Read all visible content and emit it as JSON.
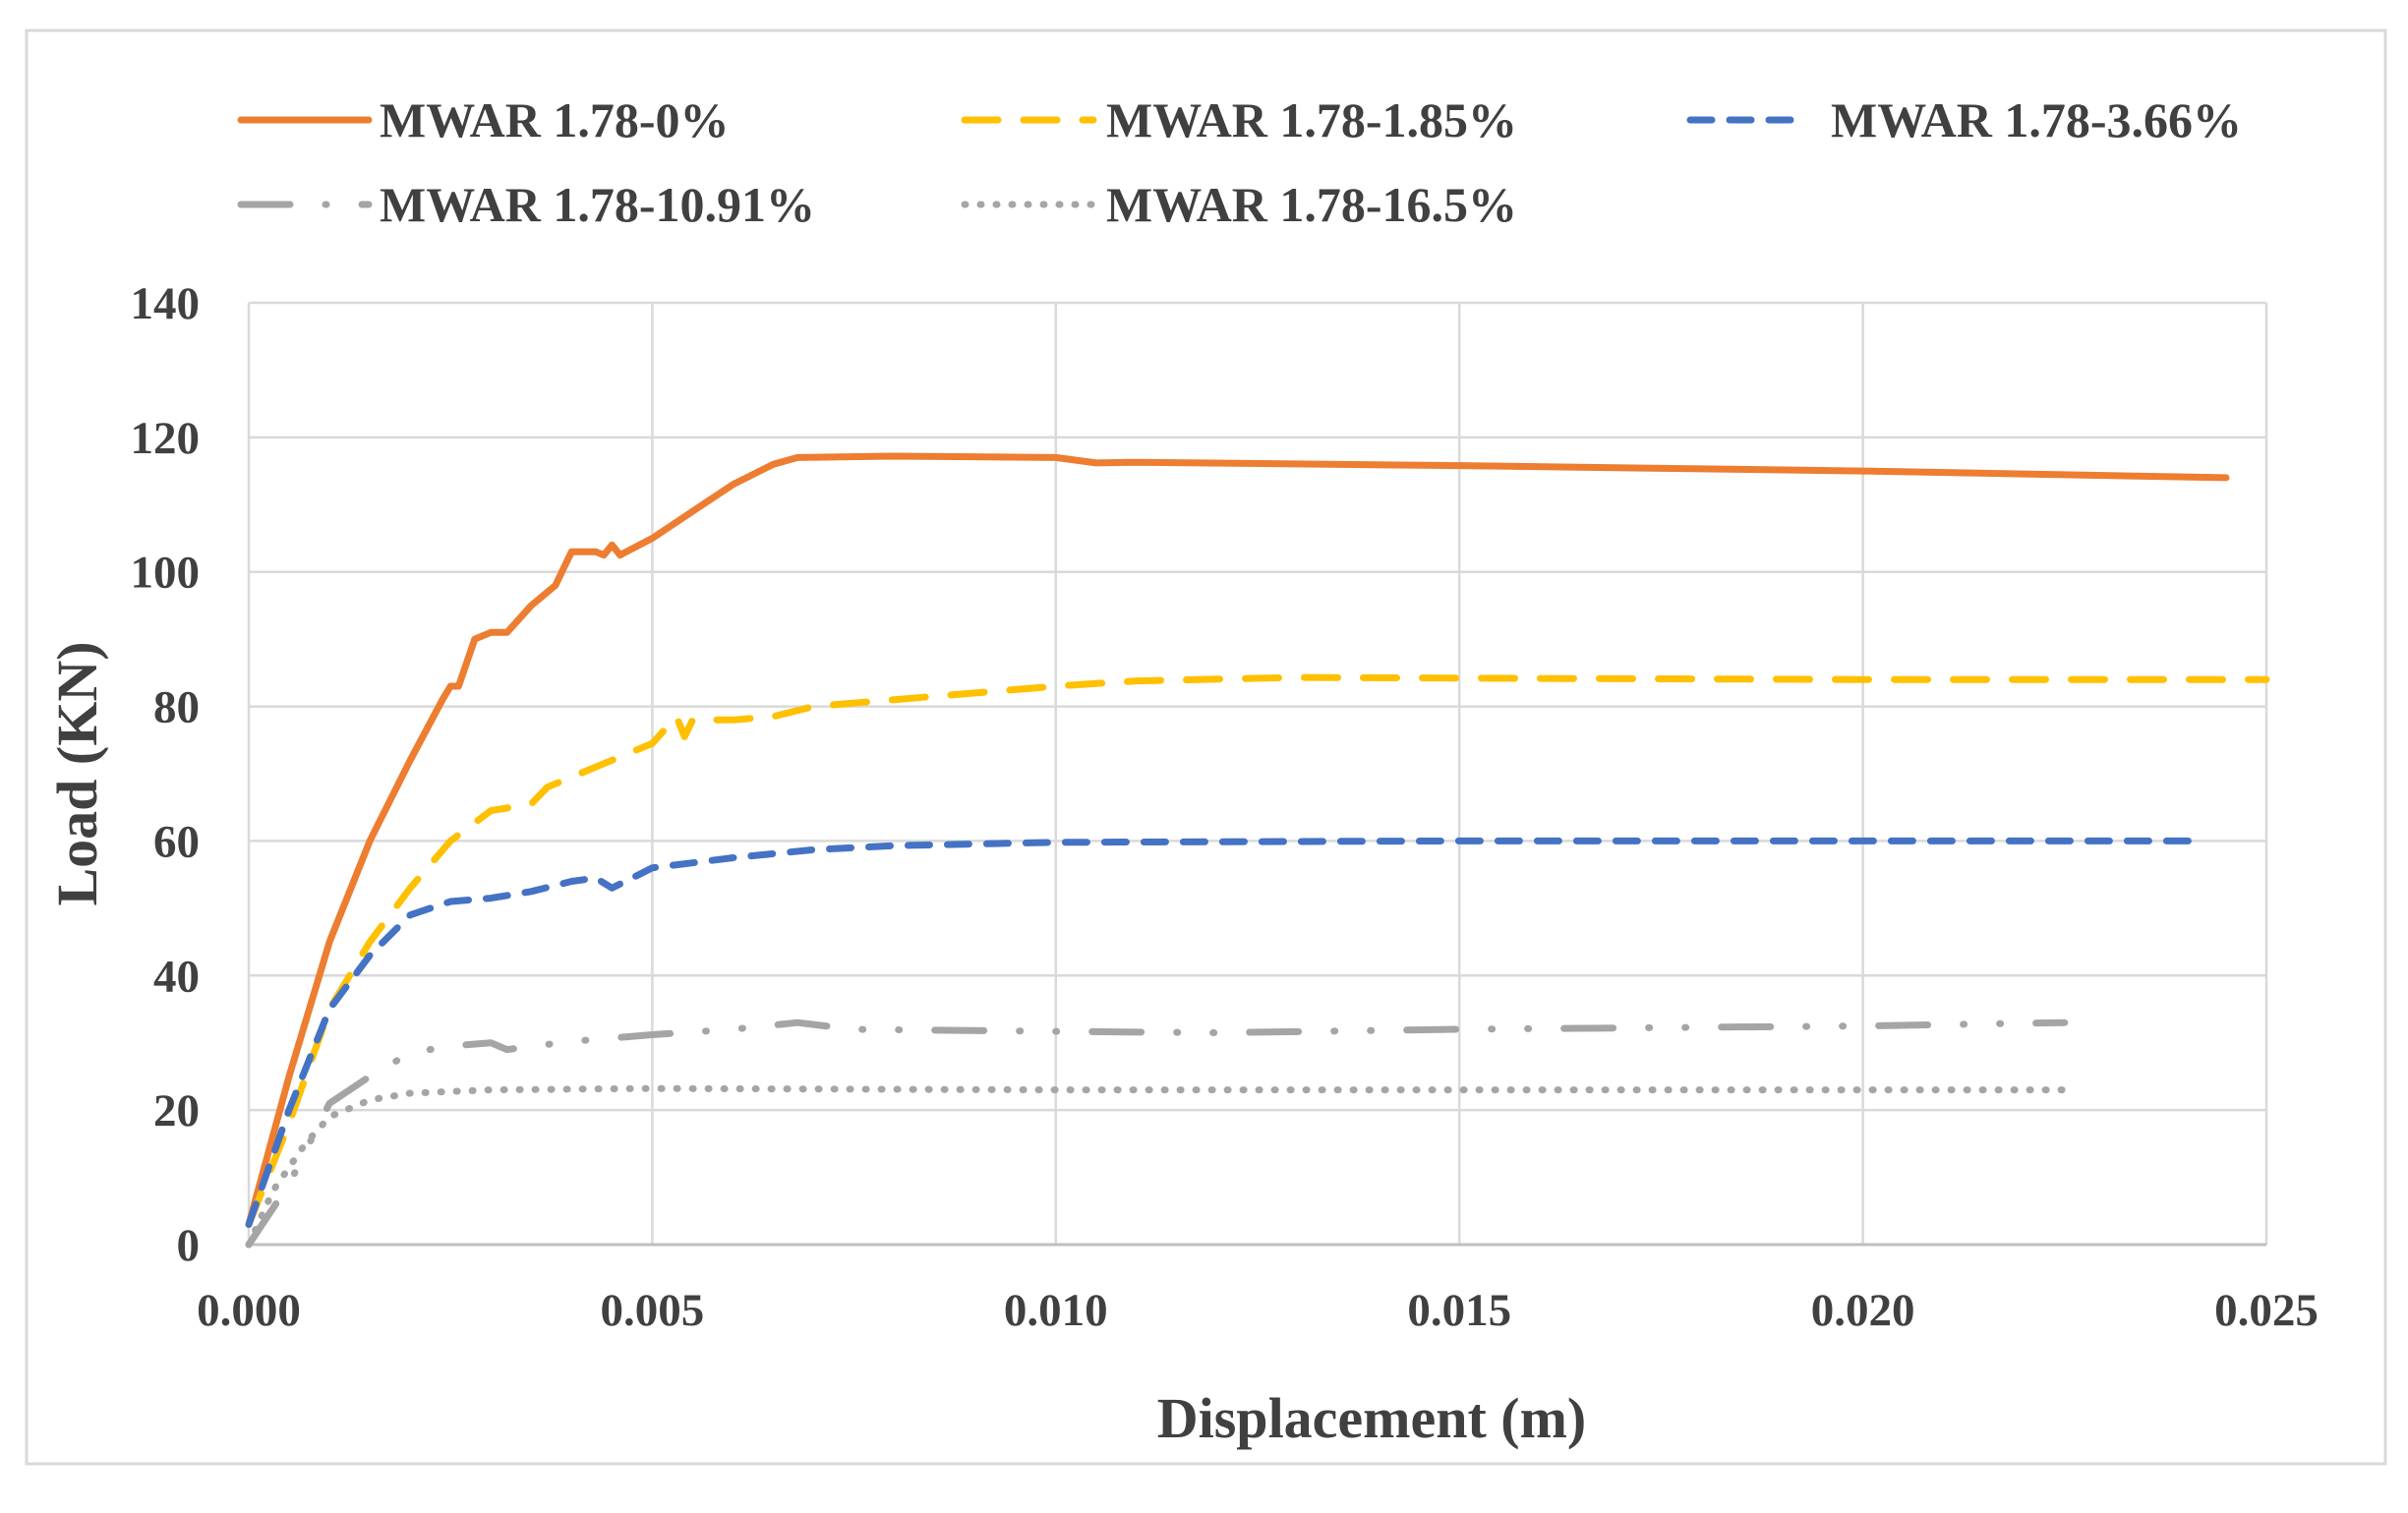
{
  "chart_data": {
    "type": "line",
    "xlabel": "Displacement (m)",
    "ylabel": "Load (KN)",
    "xlim": [
      0,
      0.025
    ],
    "ylim": [
      0,
      140
    ],
    "x_ticks": [
      "0.000",
      "0.005",
      "0.010",
      "0.015",
      "0.020",
      "0.025"
    ],
    "y_ticks": [
      "0",
      "20",
      "40",
      "60",
      "80",
      "100",
      "120",
      "140"
    ],
    "grid": true,
    "legend_placement": "top",
    "series": [
      {
        "name": "MWAR 1.78-0%",
        "color": "#ED7D31",
        "dash": "solid",
        "points": [
          [
            0,
            3
          ],
          [
            0.0005,
            25
          ],
          [
            0.001,
            45
          ],
          [
            0.0015,
            60
          ],
          [
            0.002,
            72
          ],
          [
            0.0024,
            81
          ],
          [
            0.0025,
            83
          ],
          [
            0.0026,
            83
          ],
          [
            0.0028,
            90
          ],
          [
            0.003,
            91
          ],
          [
            0.0032,
            91
          ],
          [
            0.0035,
            95
          ],
          [
            0.0038,
            98
          ],
          [
            0.004,
            103
          ],
          [
            0.0043,
            103
          ],
          [
            0.0044,
            102.5
          ],
          [
            0.0045,
            104
          ],
          [
            0.0046,
            102.5
          ],
          [
            0.005,
            105
          ],
          [
            0.0055,
            109
          ],
          [
            0.006,
            113
          ],
          [
            0.0065,
            116
          ],
          [
            0.0068,
            117
          ],
          [
            0.008,
            117.2
          ],
          [
            0.01,
            117
          ],
          [
            0.0105,
            116.2
          ],
          [
            0.011,
            116.3
          ],
          [
            0.015,
            115.8
          ],
          [
            0.02,
            115
          ],
          [
            0.0245,
            114
          ]
        ]
      },
      {
        "name": "MWAR 1.78-1.85%",
        "color": "#FFC000",
        "dash": "long-dash",
        "points": [
          [
            0,
            3
          ],
          [
            0.0005,
            18
          ],
          [
            0.001,
            35
          ],
          [
            0.0015,
            45
          ],
          [
            0.002,
            53
          ],
          [
            0.0025,
            60
          ],
          [
            0.003,
            64.5
          ],
          [
            0.0035,
            65.5
          ],
          [
            0.0037,
            68
          ],
          [
            0.0045,
            72
          ],
          [
            0.005,
            74.5
          ],
          [
            0.0053,
            78.5
          ],
          [
            0.0054,
            75.5
          ],
          [
            0.0055,
            78
          ],
          [
            0.006,
            78
          ],
          [
            0.0065,
            78.5
          ],
          [
            0.007,
            80
          ],
          [
            0.008,
            81
          ],
          [
            0.01,
            83
          ],
          [
            0.011,
            83.8
          ],
          [
            0.013,
            84.3
          ],
          [
            0.015,
            84.2
          ],
          [
            0.02,
            84
          ],
          [
            0.025,
            84
          ]
        ]
      },
      {
        "name": "MWAR 1.78-3.66%",
        "color": "#4472C4",
        "dash": "dash",
        "points": [
          [
            0,
            3
          ],
          [
            0.0005,
            20
          ],
          [
            0.001,
            35
          ],
          [
            0.0015,
            43
          ],
          [
            0.002,
            49
          ],
          [
            0.0025,
            51
          ],
          [
            0.003,
            51.5
          ],
          [
            0.0035,
            52.5
          ],
          [
            0.004,
            54
          ],
          [
            0.0043,
            54.5
          ],
          [
            0.0045,
            53
          ],
          [
            0.005,
            56
          ],
          [
            0.006,
            57.5
          ],
          [
            0.007,
            58.7
          ],
          [
            0.008,
            59.3
          ],
          [
            0.01,
            59.8
          ],
          [
            0.015,
            60
          ],
          [
            0.02,
            60
          ],
          [
            0.0242,
            60
          ]
        ]
      },
      {
        "name": "MWAR 1.78-10.91%",
        "color": "#A5A5A5",
        "dash": "long-dash-dot-dot",
        "points": [
          [
            0,
            0
          ],
          [
            0.0005,
            9
          ],
          [
            0.001,
            21
          ],
          [
            0.0015,
            25
          ],
          [
            0.002,
            28.5
          ],
          [
            0.0025,
            29.5
          ],
          [
            0.003,
            30
          ],
          [
            0.0032,
            29
          ],
          [
            0.004,
            30.2
          ],
          [
            0.005,
            31.2
          ],
          [
            0.006,
            32
          ],
          [
            0.0068,
            33
          ],
          [
            0.0075,
            32
          ],
          [
            0.01,
            31.7
          ],
          [
            0.012,
            31.5
          ],
          [
            0.015,
            32
          ],
          [
            0.02,
            32.5
          ],
          [
            0.0225,
            33
          ]
        ]
      },
      {
        "name": "MWAR 1.78-16.5%",
        "color": "#A5A5A5",
        "dash": "dot",
        "points": [
          [
            0,
            0
          ],
          [
            0.0003,
            8
          ],
          [
            0.0007,
            15
          ],
          [
            0.001,
            19
          ],
          [
            0.0015,
            21.5
          ],
          [
            0.002,
            22.5
          ],
          [
            0.003,
            23
          ],
          [
            0.005,
            23.2
          ],
          [
            0.01,
            23
          ],
          [
            0.0225,
            23
          ]
        ]
      }
    ]
  }
}
